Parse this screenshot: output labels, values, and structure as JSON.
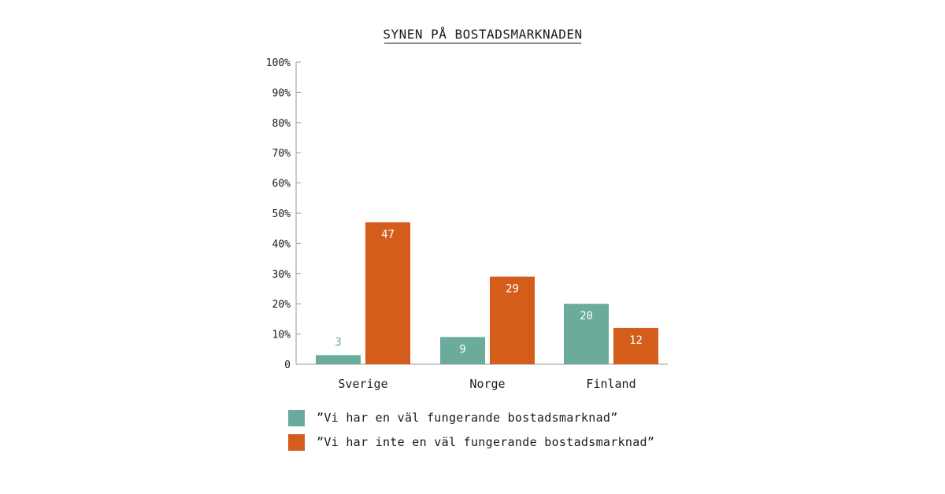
{
  "chart_data": {
    "type": "bar",
    "title": "SYNEN PÅ BOSTADSMARKNADEN",
    "categories": [
      "Sverige",
      "Norge",
      "Finland"
    ],
    "series": [
      {
        "name": "”Vi har en väl fungerande bostadsmarknad”",
        "color": "#6aab9c",
        "values": [
          3,
          9,
          20
        ]
      },
      {
        "name": "”Vi har inte en väl fungerande bostadsmarknad”",
        "color": "#d45d1b",
        "values": [
          47,
          29,
          12
        ]
      }
    ],
    "ylim": [
      0,
      100
    ],
    "yticks": [
      0,
      10,
      20,
      30,
      40,
      50,
      60,
      70,
      80,
      90,
      100
    ],
    "ytick_labels": [
      "0",
      "10%",
      "20%",
      "30%",
      "40%",
      "50%",
      "60%",
      "70%",
      "80%",
      "90%",
      "100%"
    ],
    "xlabel": "",
    "ylabel": "",
    "legend_position": "bottom"
  }
}
